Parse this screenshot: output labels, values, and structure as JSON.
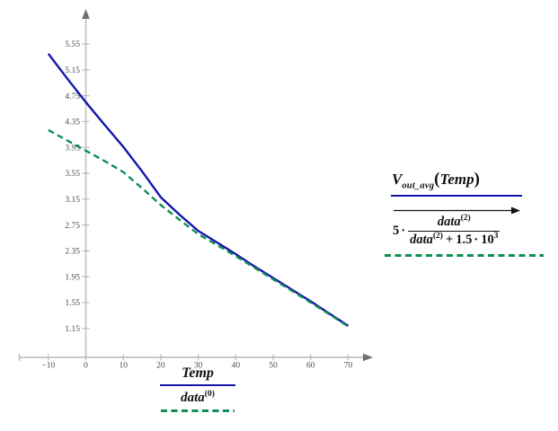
{
  "chart_data": {
    "type": "line",
    "title": "",
    "xlabel": "Temp",
    "ylabel": "",
    "grid": false,
    "xlim": [
      -17.7,
      75
    ],
    "ylim": [
      0.7,
      6.0
    ],
    "x_tick_values": [
      -10,
      0,
      10,
      20,
      30,
      40,
      50,
      60,
      70
    ],
    "x_tick_labels": [
      "−10",
      "0",
      "10",
      "20",
      "30",
      "40",
      "50",
      "60",
      "70"
    ],
    "y_tick_values": [
      5.55,
      5.15,
      4.75,
      4.35,
      3.95,
      3.55,
      3.15,
      2.75,
      2.35,
      1.95,
      1.55,
      1.15
    ],
    "y_tick_labels": [
      "5.55",
      "5.15",
      "4.75",
      "4.35",
      "3.95",
      "3.55",
      "3.15",
      "2.75",
      "2.35",
      "1.95",
      "1.55",
      "1.15"
    ],
    "x": [
      -10,
      -5,
      0,
      5,
      10,
      15,
      20,
      25,
      30,
      35,
      40,
      45,
      50,
      55,
      60,
      65,
      70
    ],
    "series": [
      {
        "name": "V_out_avg(Temp)",
        "style": "solid",
        "color": "#1414ad",
        "values": [
          5.4,
          5.02,
          4.65,
          4.3,
          3.96,
          3.58,
          3.18,
          2.91,
          2.66,
          2.48,
          2.3,
          2.11,
          1.93,
          1.75,
          1.57,
          1.38,
          1.19
        ]
      },
      {
        "name": "5·data^(2)/(data^(2)+1.5·10^3)",
        "style": "dashed",
        "color": "#0e8e52",
        "values": [
          4.22,
          4.06,
          3.9,
          3.74,
          3.57,
          3.32,
          3.06,
          2.83,
          2.61,
          2.44,
          2.27,
          2.09,
          1.91,
          1.73,
          1.55,
          1.37,
          1.18
        ]
      }
    ],
    "legend_position": "right-and-bottom"
  },
  "right_legend": {
    "v_base": "V",
    "v_sub": "out_avg",
    "v_open": "(",
    "v_arg": "Temp",
    "v_close": ")",
    "coeff": "5",
    "cdot": "·",
    "num_base": "data",
    "num_sup": "(2)",
    "den_base": "data",
    "den_sup": "(2)",
    "den_op": "+",
    "den_c1": "1.5",
    "den_cdot": "·",
    "den_ten": "10",
    "den_exp": "3"
  },
  "bottom_legend": {
    "trace1": "Temp",
    "trace2_base": "data",
    "trace2_sup": "(0)"
  },
  "colors": {
    "trace1": "#1414ad",
    "trace2": "#0e8e52",
    "axis_line": "#b9b9b9",
    "arrowhead": "#6f6f6f",
    "tick_text": "#4d4d4d",
    "formula_text": "#111111"
  }
}
